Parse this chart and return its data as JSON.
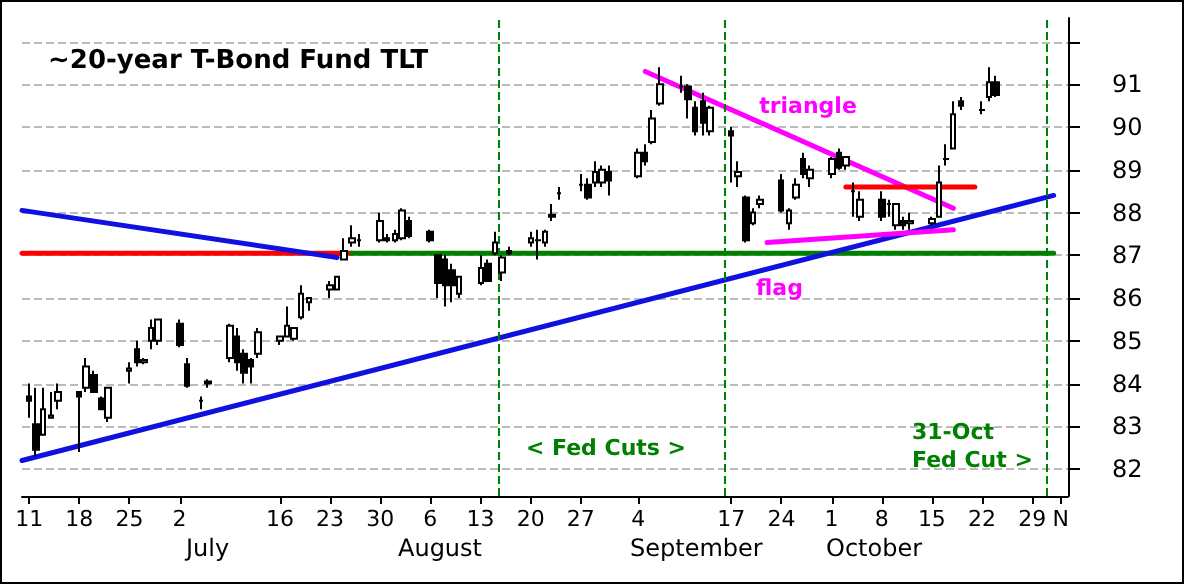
{
  "chart_data": {
    "type": "candlestick",
    "title": "~20-year T-Bond Fund TLT",
    "x": [
      "--06-11",
      "--06-12",
      "--06-13",
      "--06-14",
      "--06-15",
      "--06-18",
      "--06-19",
      "--06-20",
      "--06-21",
      "--06-22",
      "--06-25",
      "--06-26",
      "--06-27",
      "--06-28",
      "--06-29",
      "--07-02",
      "--07-03",
      "--07-05",
      "--07-06",
      "--07-09",
      "--07-10",
      "--07-11",
      "--07-12",
      "--07-13",
      "--07-16",
      "--07-17",
      "--07-18",
      "--07-19",
      "--07-20",
      "--07-23",
      "--07-24",
      "--07-25",
      "--07-26",
      "--07-27",
      "--07-30",
      "--07-31",
      "--08-01",
      "--08-02",
      "--08-03",
      "--08-06",
      "--08-07",
      "--08-08",
      "--08-09",
      "--08-10",
      "--08-13",
      "--08-14",
      "--08-15",
      "--08-16",
      "--08-17",
      "--08-20",
      "--08-21",
      "--08-22",
      "--08-23",
      "--08-24",
      "--08-27",
      "--08-28",
      "--08-29",
      "--08-30",
      "--08-31",
      "--09-04",
      "--09-05",
      "--09-06",
      "--09-07",
      "--09-10",
      "--09-11",
      "--09-12",
      "--09-13",
      "--09-14",
      "--09-17",
      "--09-18",
      "--09-19",
      "--09-20",
      "--09-21",
      "--09-24",
      "--09-25",
      "--09-26",
      "--09-27",
      "--09-28",
      "--10-01",
      "--10-02",
      "--10-03",
      "--10-04",
      "--10-05",
      "--10-08",
      "--10-09",
      "--10-10",
      "--10-11",
      "--10-12",
      "--10-15",
      "--10-16",
      "--10-17",
      "--10-18",
      "--10-19",
      "--10-22",
      "--10-23",
      "--10-24"
    ],
    "ohlc": [
      [
        83.7,
        84.0,
        83.2,
        83.6
      ],
      [
        83.05,
        83.9,
        82.3,
        82.45
      ],
      [
        82.8,
        83.9,
        82.8,
        83.4
      ],
      [
        83.2,
        83.8,
        83.2,
        83.25
      ],
      [
        83.6,
        84.0,
        83.4,
        83.8
      ],
      [
        83.8,
        83.8,
        82.4,
        83.7
      ],
      [
        83.9,
        84.6,
        83.8,
        84.4
      ],
      [
        84.2,
        84.3,
        83.8,
        83.8
      ],
      [
        83.65,
        83.7,
        83.4,
        83.4
      ],
      [
        83.2,
        83.9,
        83.1,
        83.9
      ],
      [
        84.3,
        84.5,
        84.0,
        84.35
      ],
      [
        84.8,
        85.0,
        84.4,
        84.5
      ],
      [
        84.5,
        84.6,
        84.45,
        84.55
      ],
      [
        85.0,
        85.5,
        84.8,
        85.3
      ],
      [
        85.0,
        85.5,
        84.9,
        85.5
      ],
      [
        85.4,
        85.5,
        84.85,
        84.9
      ],
      [
        84.45,
        84.6,
        83.9,
        83.95
      ],
      [
        83.6,
        83.7,
        83.4,
        83.6
      ],
      [
        84.0,
        84.1,
        83.9,
        84.05
      ],
      [
        84.6,
        85.4,
        84.5,
        85.35
      ],
      [
        85.1,
        85.3,
        84.3,
        84.5
      ],
      [
        84.7,
        84.8,
        84.0,
        84.25
      ],
      [
        84.55,
        84.6,
        84.0,
        84.4
      ],
      [
        84.7,
        85.3,
        84.6,
        85.2
      ],
      [
        85.0,
        85.1,
        84.9,
        85.1
      ],
      [
        85.1,
        85.8,
        85.1,
        85.35
      ],
      [
        85.05,
        85.3,
        85.0,
        85.3
      ],
      [
        85.55,
        86.3,
        85.5,
        86.1
      ],
      [
        85.9,
        86.0,
        85.7,
        86.0
      ],
      [
        86.2,
        86.4,
        86.0,
        86.3
      ],
      [
        86.2,
        86.5,
        86.2,
        86.5
      ],
      [
        86.9,
        87.4,
        86.9,
        87.1
      ],
      [
        87.3,
        87.7,
        87.2,
        87.4
      ],
      [
        87.35,
        87.5,
        87.2,
        87.35
      ],
      [
        87.35,
        88.0,
        87.3,
        87.8
      ],
      [
        87.4,
        87.5,
        87.3,
        87.35
      ],
      [
        87.35,
        87.6,
        87.3,
        87.5
      ],
      [
        87.4,
        88.1,
        87.35,
        88.05
      ],
      [
        87.8,
        87.9,
        87.4,
        87.45
      ],
      [
        87.55,
        87.6,
        87.3,
        87.35
      ],
      [
        87.0,
        87.0,
        86.0,
        86.35
      ],
      [
        86.9,
        87.0,
        85.8,
        86.3
      ],
      [
        86.65,
        86.8,
        85.9,
        86.3
      ],
      [
        86.1,
        86.5,
        86.0,
        86.5
      ],
      [
        86.35,
        87.0,
        86.3,
        86.7
      ],
      [
        86.8,
        86.9,
        86.4,
        86.4
      ],
      [
        87.05,
        87.55,
        87.0,
        87.3
      ],
      [
        86.6,
        87.0,
        86.4,
        86.95
      ],
      [
        87.1,
        87.2,
        87.0,
        87.05
      ],
      [
        87.3,
        87.55,
        87.2,
        87.4
      ],
      [
        87.35,
        87.6,
        86.9,
        87.35
      ],
      [
        87.3,
        87.6,
        87.2,
        87.55
      ],
      [
        87.9,
        88.2,
        87.8,
        87.95
      ],
      [
        88.45,
        88.6,
        88.3,
        88.45
      ],
      [
        88.65,
        88.9,
        88.5,
        88.65
      ],
      [
        88.65,
        88.8,
        88.3,
        88.35
      ],
      [
        88.7,
        89.2,
        88.6,
        88.95
      ],
      [
        88.7,
        89.1,
        88.6,
        89.0
      ],
      [
        88.95,
        89.1,
        88.4,
        88.75
      ],
      [
        88.85,
        89.5,
        88.8,
        89.4
      ],
      [
        89.4,
        89.6,
        89.1,
        89.2
      ],
      [
        89.65,
        90.4,
        89.6,
        90.2
      ],
      [
        90.55,
        91.4,
        90.5,
        91.0
      ],
      [
        90.95,
        91.2,
        90.8,
        90.95
      ],
      [
        90.95,
        91.0,
        90.2,
        90.65
      ],
      [
        90.45,
        90.6,
        89.8,
        89.9
      ],
      [
        90.6,
        90.8,
        89.8,
        90.1
      ],
      [
        89.9,
        90.5,
        89.8,
        90.45
      ],
      [
        89.9,
        90.0,
        88.7,
        89.8
      ],
      [
        88.85,
        89.2,
        88.6,
        88.95
      ],
      [
        88.35,
        88.4,
        87.3,
        87.35
      ],
      [
        87.75,
        88.1,
        87.7,
        88.0
      ],
      [
        88.2,
        88.4,
        88.1,
        88.3
      ],
      [
        88.75,
        88.9,
        88.0,
        88.05
      ],
      [
        87.75,
        88.1,
        87.6,
        88.05
      ],
      [
        88.35,
        88.8,
        88.3,
        88.65
      ],
      [
        89.25,
        89.4,
        88.8,
        88.9
      ],
      [
        88.8,
        89.1,
        88.6,
        89.0
      ],
      [
        88.9,
        89.3,
        88.8,
        89.25
      ],
      [
        89.4,
        89.5,
        89.0,
        89.05
      ],
      [
        89.1,
        89.3,
        89.0,
        89.3
      ],
      [
        88.5,
        88.7,
        87.9,
        88.5
      ],
      [
        87.9,
        88.5,
        87.8,
        88.3
      ],
      [
        88.3,
        88.5,
        87.8,
        87.9
      ],
      [
        88.2,
        88.3,
        87.9,
        88.2
      ],
      [
        87.7,
        88.2,
        87.6,
        88.2
      ],
      [
        87.8,
        87.9,
        87.6,
        87.7
      ],
      [
        87.75,
        88.0,
        87.6,
        87.8
      ],
      [
        87.75,
        87.9,
        87.7,
        87.85
      ],
      [
        87.9,
        89.1,
        87.9,
        88.7
      ],
      [
        89.25,
        89.6,
        89.1,
        89.25
      ],
      [
        89.5,
        90.6,
        89.5,
        90.3
      ],
      [
        90.6,
        90.7,
        90.4,
        90.5
      ],
      [
        90.4,
        90.6,
        90.3,
        90.4
      ],
      [
        90.7,
        91.4,
        90.6,
        91.05
      ],
      [
        91.05,
        91.2,
        90.7,
        90.75
      ]
    ],
    "series": [
      {
        "type": "line",
        "color": "#ff0000",
        "x": [
          "--06-10",
          "--07-26"
        ],
        "values": [
          87.05,
          87.05
        ]
      },
      {
        "type": "line",
        "color": "#008000",
        "x": [
          "--07-26",
          "--11-01"
        ],
        "values": [
          87.05,
          87.05
        ]
      },
      {
        "type": "line",
        "color": "#1010e0",
        "x": [
          "--06-10",
          "--07-24"
        ],
        "values": [
          88.05,
          86.95
        ]
      },
      {
        "type": "line",
        "color": "#1010e0",
        "x": [
          "--06-10",
          "--11-01"
        ],
        "values": [
          82.2,
          88.4
        ]
      },
      {
        "type": "line",
        "color": "#ff00ff",
        "x": [
          "--09-05",
          "--10-18"
        ],
        "values": [
          91.3,
          88.1
        ]
      },
      {
        "type": "line",
        "color": "#ff00ff",
        "x": [
          "--09-22",
          "--10-18"
        ],
        "values": [
          87.3,
          87.6
        ]
      },
      {
        "type": "line",
        "color": "#ff0000",
        "x": [
          "--10-03",
          "--10-21"
        ],
        "values": [
          88.6,
          88.6
        ]
      }
    ],
    "ref_lines": [
      {
        "axis": "x",
        "value": "--08-15T12:00",
        "color": "#008000",
        "line_style": "dashed"
      },
      {
        "axis": "x",
        "value": "--09-16",
        "color": "#008000",
        "line_style": "dashed"
      },
      {
        "axis": "x",
        "value": "--10-31",
        "color": "#008000",
        "line_style": "dashed"
      }
    ],
    "annotations": [
      "triangle",
      "flag",
      "< Fed Cuts >",
      "31-Oct",
      "Fed Cut >",
      "July",
      "August",
      "September",
      "October"
    ],
    "xlim": [
      "--06-10",
      "--11-03"
    ],
    "ylim": [
      81.37,
      92.55
    ],
    "yticks": [
      82,
      83,
      84,
      85,
      86,
      87,
      88,
      89,
      90,
      91,
      {
        "value": 92,
        "label": null
      }
    ],
    "xticks": [
      {
        "value": "--06-11",
        "label": "11"
      },
      {
        "value": "--06-18",
        "label": "18"
      },
      {
        "value": "--06-25",
        "label": "25"
      },
      {
        "value": "--07-02",
        "label": "2"
      },
      {
        "value": "--07-16",
        "label": "16"
      },
      {
        "value": "--07-23",
        "label": "23"
      },
      {
        "value": "--07-30",
        "label": "30"
      },
      {
        "value": "--08-06",
        "label": "6"
      },
      {
        "value": "--08-13",
        "label": "13"
      },
      {
        "value": "--08-20",
        "label": "20"
      },
      {
        "value": "--08-27",
        "label": "27"
      },
      {
        "value": "--09-04",
        "label": "4"
      },
      {
        "value": "--09-17",
        "label": "17"
      },
      {
        "value": "--09-24",
        "label": "24"
      },
      {
        "value": "--10-01",
        "label": "1"
      },
      {
        "value": "--10-08",
        "label": "8"
      },
      {
        "value": "--10-15",
        "label": "15"
      },
      {
        "value": "--10-22",
        "label": "22"
      },
      {
        "value": "--10-29",
        "label": "29"
      },
      {
        "value": "--11-02",
        "label": "N"
      }
    ],
    "grid": "y"
  }
}
